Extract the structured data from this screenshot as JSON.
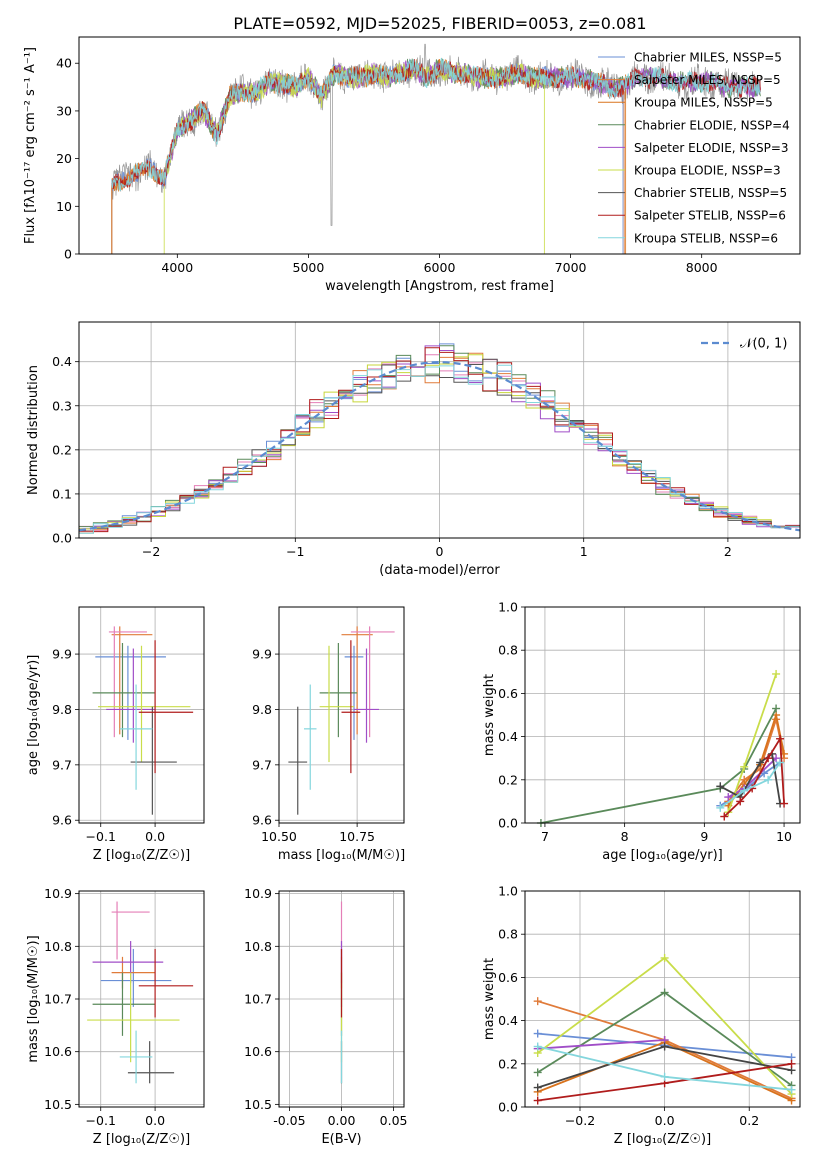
{
  "figure": {
    "title": "PLATE=0592, MJD=52025, FIBERID=0053, z=0.081"
  },
  "colors": {
    "series": [
      "#6a8fd6",
      "#e07b3a",
      "#d9731d",
      "#5a8a5a",
      "#a04ec7",
      "#c9dd4a",
      "#555555",
      "#b01c1c",
      "#84d6dd"
    ],
    "frame": "#000000",
    "grid": "#b0b0b0",
    "normal": "#5b8bd0",
    "pink": "#e47fb7",
    "gray": "#888888",
    "olive": "#c7d63a"
  },
  "chart_data": [
    {
      "id": "spectrum",
      "type": "line",
      "xlabel": "wavelength [Angstrom, rest frame]",
      "ylabel": "Flux [fλ10⁻¹⁷ erg cm⁻² s⁻¹ A⁻¹]",
      "xlim": [
        3250,
        8750
      ],
      "ylim": [
        0,
        45.5
      ],
      "xticks": [
        4000,
        5000,
        6000,
        7000,
        8000
      ],
      "yticks": [
        0,
        10,
        20,
        30,
        40
      ],
      "grid": false,
      "legend_position": "top-right",
      "legend": [
        "Chabrier MILES, NSSP=5",
        "Salpeter MILES, NSSP=5",
        "Kroupa MILES, NSSP=5",
        "Chabrier ELODIE, NSSP=4",
        "Salpeter ELODIE, NSSP=3",
        "Kroupa ELODIE, NSSP=3",
        "Chabrier STELIB, NSSP=5",
        "Salpeter STELIB, NSSP=6",
        "Kroupa STELIB, NSSP=6"
      ],
      "envelope": {
        "x": [
          3500,
          3600,
          3700,
          3800,
          3900,
          4000,
          4100,
          4200,
          4300,
          4400,
          4500,
          4600,
          4700,
          4800,
          4900,
          5000,
          5100,
          5200,
          5300,
          5400,
          5500,
          5600,
          5700,
          5800,
          5900,
          6000,
          6100,
          6200,
          6300,
          6400,
          6500,
          6600,
          6700,
          6800,
          6900,
          7000,
          7100,
          7200,
          7300,
          7400,
          7500,
          7600,
          7700,
          7800,
          7900,
          8000,
          8100,
          8200,
          8300,
          8400
        ],
        "y": [
          14,
          16,
          17,
          18,
          16,
          26,
          28,
          30,
          25,
          33,
          34,
          34,
          36,
          36,
          35,
          37,
          33,
          38,
          37,
          37,
          38,
          37,
          38,
          39,
          37,
          39,
          38,
          38,
          37,
          37,
          37,
          38,
          37,
          37,
          37,
          37,
          37,
          36,
          35,
          35,
          37,
          37,
          37,
          36,
          36,
          36,
          36,
          35,
          35,
          35
        ]
      },
      "features": {
        "data_x": [
          3500,
          8450
        ],
        "absorption_x": [
          5175,
          5890
        ],
        "miles_end_x": 7400,
        "elodie_end_x": 6800
      }
    },
    {
      "id": "residuals",
      "type": "histogram",
      "xlabel": "(data-model)/error",
      "ylabel": "Normed distribution",
      "xlim": [
        -2.5,
        2.5
      ],
      "ylim": [
        0,
        0.49
      ],
      "xticks": [
        -2,
        -1,
        0,
        1,
        2
      ],
      "yticks": [
        0.0,
        0.1,
        0.2,
        0.3,
        0.4
      ],
      "grid": true,
      "bins": 50,
      "legend_position": "top-right",
      "legend": [
        "𝒩(0, 1)"
      ]
    },
    {
      "id": "age-vs-Z",
      "type": "errorbar",
      "xlabel": "Z [log₁₀(Z/Z☉)]",
      "ylabel": "age  [log₁₀(age/yr)]",
      "xlim": [
        -0.14,
        0.09
      ],
      "ylim": [
        9.595,
        9.985
      ],
      "xticks": [
        -0.1,
        0.0
      ],
      "yticks": [
        9.6,
        9.7,
        9.8,
        9.9
      ],
      "grid": true,
      "points": [
        {
          "x": -0.05,
          "xerr": [
            0.06,
            0.07
          ],
          "y": 9.895,
          "yerr": [
            0.15,
            0.02
          ]
        },
        {
          "x": -0.065,
          "xerr": [
            0.015,
            0.06
          ],
          "y": 9.935,
          "yerr": [
            0.18,
            0.015
          ]
        },
        {
          "x": -0.075,
          "xerr": [
            0.01,
            0.06
          ],
          "y": 9.94,
          "yerr": [
            0.19,
            0.01
          ]
        },
        {
          "x": -0.06,
          "xerr": [
            0.055,
            0.06
          ],
          "y": 9.83,
          "yerr": [
            0.08,
            0.09
          ]
        },
        {
          "x": -0.04,
          "xerr": [
            0.05,
            0.04
          ],
          "y": 9.8,
          "yerr": [
            0.06,
            0.11
          ]
        },
        {
          "x": -0.025,
          "xerr": [
            0.08,
            0.09
          ],
          "y": 9.805,
          "yerr": [
            0.1,
            0.11
          ]
        },
        {
          "x": -0.005,
          "xerr": [
            0.04,
            0.045
          ],
          "y": 9.705,
          "yerr": [
            0.095,
            0.1
          ]
        },
        {
          "x": 0.0,
          "xerr": [
            0.03,
            0.07
          ],
          "y": 9.795,
          "yerr": [
            0.11,
            0.13
          ]
        },
        {
          "x": -0.035,
          "xerr": [
            0.03,
            0.03
          ],
          "y": 9.765,
          "yerr": [
            0.11,
            0.08
          ]
        }
      ]
    },
    {
      "id": "age-vs-mass",
      "type": "errorbar",
      "xlabel": "mass [log₁₀(M/M☉)]",
      "ylabel": "",
      "xlim": [
        10.5,
        10.9
      ],
      "ylim": [
        9.595,
        9.985
      ],
      "xticks": [
        10.5,
        10.75
      ],
      "xticklabels": [
        "10.50",
        "10.75"
      ],
      "yticks": [
        9.6,
        9.7,
        9.8,
        9.9
      ],
      "grid": true,
      "points": [
        {
          "x": 10.74,
          "xerr": [
            0.03,
            0.03
          ],
          "y": 9.895,
          "yerr": [
            0.15,
            0.02
          ]
        },
        {
          "x": 10.75,
          "xerr": [
            0.05,
            0.05
          ],
          "y": 9.935,
          "yerr": [
            0.18,
            0.015
          ]
        },
        {
          "x": 10.79,
          "xerr": [
            0.06,
            0.08
          ],
          "y": 9.94,
          "yerr": [
            0.19,
            0.01
          ]
        },
        {
          "x": 10.69,
          "xerr": [
            0.06,
            0.06
          ],
          "y": 9.83,
          "yerr": [
            0.08,
            0.09
          ]
        },
        {
          "x": 10.78,
          "xerr": [
            0.04,
            0.04
          ],
          "y": 9.8,
          "yerr": [
            0.06,
            0.11
          ]
        },
        {
          "x": 10.66,
          "xerr": [
            0.03,
            0.08
          ],
          "y": 9.805,
          "yerr": [
            0.1,
            0.11
          ]
        },
        {
          "x": 10.56,
          "xerr": [
            0.03,
            0.03
          ],
          "y": 9.705,
          "yerr": [
            0.095,
            0.1
          ]
        },
        {
          "x": 10.73,
          "xerr": [
            0.03,
            0.03
          ],
          "y": 9.795,
          "yerr": [
            0.11,
            0.13
          ]
        },
        {
          "x": 10.6,
          "xerr": [
            0.02,
            0.02
          ],
          "y": 9.765,
          "yerr": [
            0.11,
            0.08
          ]
        }
      ]
    },
    {
      "id": "mass-weight-vs-age",
      "type": "line",
      "xlabel": "age  [log₁₀(age/yr)]",
      "ylabel": "mass weight",
      "xlim": [
        6.75,
        10.2
      ],
      "ylim": [
        0,
        1.0
      ],
      "xticks": [
        7,
        8,
        9,
        10
      ],
      "yticks": [
        0.0,
        0.2,
        0.4,
        0.6,
        0.8,
        1.0
      ],
      "grid": true,
      "series": [
        {
          "x": [
            9.2,
            9.5,
            9.75,
            9.95
          ],
          "values": [
            0.08,
            0.15,
            0.23,
            0.28
          ]
        },
        {
          "x": [
            9.3,
            9.5,
            9.7,
            9.9,
            10.0
          ],
          "values": [
            0.1,
            0.2,
            0.25,
            0.48,
            0.3
          ]
        },
        {
          "x": [
            9.3,
            9.5,
            9.7,
            9.9,
            10.0
          ],
          "values": [
            0.08,
            0.18,
            0.27,
            0.5,
            0.32
          ]
        },
        {
          "x": [
            6.95,
            9.2,
            9.5,
            9.9
          ],
          "values": [
            0.0,
            0.16,
            0.25,
            0.53
          ]
        },
        {
          "x": [
            9.3,
            9.5,
            9.9
          ],
          "values": [
            0.12,
            0.16,
            0.3
          ]
        },
        {
          "x": [
            9.3,
            9.5,
            9.9
          ],
          "values": [
            0.05,
            0.26,
            0.69
          ]
        },
        {
          "x": [
            9.2,
            9.45,
            9.7,
            9.85,
            9.95
          ],
          "values": [
            0.17,
            0.12,
            0.28,
            0.32,
            0.09
          ]
        },
        {
          "x": [
            9.25,
            9.45,
            9.6,
            9.8,
            9.95,
            10.0
          ],
          "values": [
            0.03,
            0.1,
            0.16,
            0.3,
            0.39,
            0.09
          ]
        },
        {
          "x": [
            9.2,
            9.5,
            9.8,
            9.95
          ],
          "values": [
            0.07,
            0.15,
            0.2,
            0.28
          ]
        }
      ]
    },
    {
      "id": "mass-vs-Z",
      "type": "errorbar",
      "xlabel": "Z [log₁₀(Z/Z☉)]",
      "ylabel": "mass [log₁₀(M/M☉)]",
      "xlim": [
        -0.14,
        0.09
      ],
      "ylim": [
        10.495,
        10.905
      ],
      "xticks": [
        -0.1,
        0.0
      ],
      "yticks": [
        10.5,
        10.6,
        10.7,
        10.8,
        10.9
      ],
      "grid": true,
      "points": [
        {
          "x": -0.04,
          "xerr": [
            0.06,
            0.07
          ],
          "y": 10.735,
          "yerr": [
            0.05,
            0.06
          ]
        },
        {
          "x": -0.06,
          "xerr": [
            0.02,
            0.06
          ],
          "y": 10.75,
          "yerr": [
            0.03,
            0.03
          ]
        },
        {
          "x": -0.07,
          "xerr": [
            0.01,
            0.06
          ],
          "y": 10.865,
          "yerr": [
            0.09,
            0.02
          ]
        },
        {
          "x": -0.06,
          "xerr": [
            0.055,
            0.06
          ],
          "y": 10.69,
          "yerr": [
            0.06,
            0.06
          ]
        },
        {
          "x": -0.045,
          "xerr": [
            0.07,
            0.06
          ],
          "y": 10.77,
          "yerr": [
            0.04,
            0.04
          ]
        },
        {
          "x": -0.045,
          "xerr": [
            0.08,
            0.09
          ],
          "y": 10.66,
          "yerr": [
            0.08,
            0.09
          ]
        },
        {
          "x": -0.01,
          "xerr": [
            0.04,
            0.045
          ],
          "y": 10.56,
          "yerr": [
            0.02,
            0.06
          ]
        },
        {
          "x": 0.0,
          "xerr": [
            0.03,
            0.07
          ],
          "y": 10.725,
          "yerr": [
            0.06,
            0.07
          ]
        },
        {
          "x": -0.035,
          "xerr": [
            0.03,
            0.03
          ],
          "y": 10.59,
          "yerr": [
            0.05,
            0.05
          ]
        }
      ]
    },
    {
      "id": "mass-vs-EBV",
      "type": "errorbar",
      "xlabel": "E(B-V)",
      "ylabel": "",
      "xlim": [
        -0.06,
        0.06
      ],
      "ylim": [
        10.495,
        10.905
      ],
      "xticks": [
        -0.05,
        0.0,
        0.05
      ],
      "xticklabels": [
        "-0.05",
        "0.00",
        "0.05"
      ],
      "yticks": [
        10.5,
        10.6,
        10.7,
        10.8,
        10.9
      ],
      "grid": true,
      "points": [
        {
          "x": 0.0,
          "y": 10.735,
          "yerr": [
            0.05,
            0.06
          ]
        },
        {
          "x": 0.0,
          "y": 10.75,
          "yerr": [
            0.03,
            0.03
          ]
        },
        {
          "x": 0.0,
          "y": 10.865,
          "yerr": [
            0.09,
            0.02
          ]
        },
        {
          "x": 0.0,
          "y": 10.69,
          "yerr": [
            0.06,
            0.06
          ]
        },
        {
          "x": 0.0,
          "y": 10.77,
          "yerr": [
            0.04,
            0.04
          ]
        },
        {
          "x": 0.0,
          "y": 10.66,
          "yerr": [
            0.08,
            0.09
          ]
        },
        {
          "x": 0.0,
          "y": 10.56,
          "yerr": [
            0.02,
            0.06
          ]
        },
        {
          "x": 0.0,
          "y": 10.725,
          "yerr": [
            0.06,
            0.07
          ]
        },
        {
          "x": 0.0,
          "y": 10.59,
          "yerr": [
            0.05,
            0.05
          ]
        }
      ]
    },
    {
      "id": "mass-weight-vs-Z",
      "type": "line",
      "xlabel": "Z [log₁₀(Z/Z☉)]",
      "ylabel": "mass weight",
      "xlim": [
        -0.33,
        0.32
      ],
      "ylim": [
        0,
        1.0
      ],
      "xticks": [
        -0.2,
        0.0,
        0.2
      ],
      "xticklabels": [
        "−0.2",
        "0.0",
        "0.2"
      ],
      "yticks": [
        0.0,
        0.2,
        0.4,
        0.6,
        0.8,
        1.0
      ],
      "grid": true,
      "series": [
        {
          "x": [
            -0.3,
            0.3
          ],
          "values": [
            0.34,
            0.23
          ]
        },
        {
          "x": [
            -0.3,
            0.0,
            0.3
          ],
          "values": [
            0.49,
            0.31,
            0.04
          ]
        },
        {
          "x": [
            -0.3,
            0.0,
            0.3
          ],
          "values": [
            0.07,
            0.3,
            0.03
          ]
        },
        {
          "x": [
            -0.3,
            0.0,
            0.3
          ],
          "values": [
            0.16,
            0.53,
            0.1
          ]
        },
        {
          "x": [
            -0.3,
            0.0
          ],
          "values": [
            0.27,
            0.31
          ]
        },
        {
          "x": [
            -0.3,
            0.0,
            0.3
          ],
          "values": [
            0.25,
            0.69,
            0.06
          ]
        },
        {
          "x": [
            -0.3,
            0.0,
            0.3
          ],
          "values": [
            0.09,
            0.28,
            0.17
          ]
        },
        {
          "x": [
            -0.3,
            0.0,
            0.3
          ],
          "values": [
            0.03,
            0.11,
            0.2
          ]
        },
        {
          "x": [
            -0.3,
            0.0,
            0.3
          ],
          "values": [
            0.28,
            0.14,
            0.08
          ]
        }
      ]
    }
  ]
}
